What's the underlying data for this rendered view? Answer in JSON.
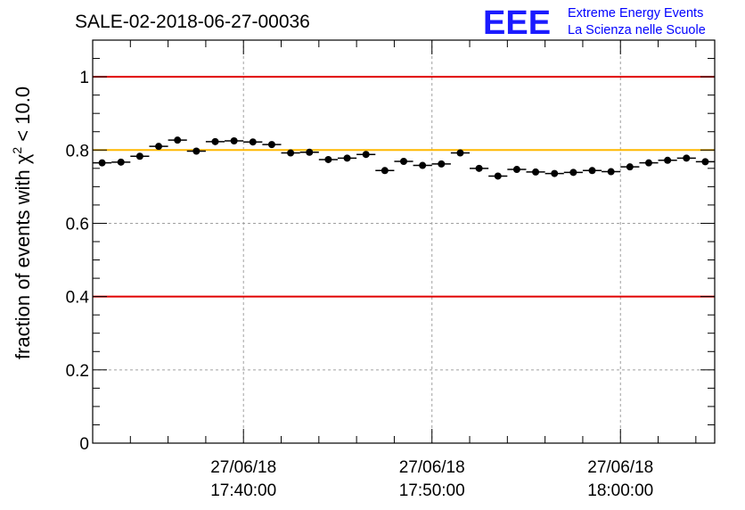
{
  "header": {
    "title": "SALE-02-2018-06-27-00036",
    "logo_mark": "EEE",
    "logo_line1": "Extreme Energy Events",
    "logo_line2": "La Scienza nelle Scuole"
  },
  "colors": {
    "threshold": "#e00000",
    "reference": "#ffb800",
    "points": "#000000",
    "logo": "#0000ff"
  },
  "chart_data": {
    "type": "scatter",
    "title": "SALE-02-2018-06-27-00036",
    "ylabel_prefix": "fraction of events with χ",
    "ylabel_sup": "2",
    "ylabel_suffix": " < 10.0",
    "ylim": [
      0,
      1.1
    ],
    "yticks": [
      0,
      0.2,
      0.4,
      0.6,
      0.8,
      1
    ],
    "ytick_labels": [
      "0",
      "0.2",
      "0.4",
      "0.6",
      "0.8",
      "1"
    ],
    "xlim": [
      "17:32:00",
      "18:05:00"
    ],
    "xtick_labels": [
      {
        "x": "17:40:00",
        "date": "27/06/18",
        "time": "17:40:00"
      },
      {
        "x": "17:50:00",
        "date": "27/06/18",
        "time": "17:50:00"
      },
      {
        "x": "18:00:00",
        "date": "27/06/18",
        "time": "18:00:00"
      }
    ],
    "grid": true,
    "hlines": [
      {
        "y": 1.0,
        "color": "#e00000"
      },
      {
        "y": 0.8,
        "color": "#ffb800"
      },
      {
        "y": 0.4,
        "color": "#e00000"
      }
    ],
    "bin_width_min": 1,
    "points": [
      {
        "x": "17:32:30",
        "y": 0.765
      },
      {
        "x": "17:33:30",
        "y": 0.767
      },
      {
        "x": "17:34:30",
        "y": 0.783
      },
      {
        "x": "17:35:30",
        "y": 0.81
      },
      {
        "x": "17:36:30",
        "y": 0.827
      },
      {
        "x": "17:37:30",
        "y": 0.797
      },
      {
        "x": "17:38:30",
        "y": 0.823
      },
      {
        "x": "17:39:30",
        "y": 0.825
      },
      {
        "x": "17:40:30",
        "y": 0.822
      },
      {
        "x": "17:41:30",
        "y": 0.815
      },
      {
        "x": "17:42:30",
        "y": 0.792
      },
      {
        "x": "17:43:30",
        "y": 0.794
      },
      {
        "x": "17:44:30",
        "y": 0.774
      },
      {
        "x": "17:45:30",
        "y": 0.778
      },
      {
        "x": "17:46:30",
        "y": 0.788
      },
      {
        "x": "17:47:30",
        "y": 0.744
      },
      {
        "x": "17:48:30",
        "y": 0.769
      },
      {
        "x": "17:49:30",
        "y": 0.758
      },
      {
        "x": "17:50:30",
        "y": 0.762
      },
      {
        "x": "17:51:30",
        "y": 0.792
      },
      {
        "x": "17:52:30",
        "y": 0.75
      },
      {
        "x": "17:53:30",
        "y": 0.729
      },
      {
        "x": "17:54:30",
        "y": 0.747
      },
      {
        "x": "17:55:30",
        "y": 0.74
      },
      {
        "x": "17:56:30",
        "y": 0.736
      },
      {
        "x": "17:57:30",
        "y": 0.739
      },
      {
        "x": "17:58:30",
        "y": 0.744
      },
      {
        "x": "17:59:30",
        "y": 0.741
      },
      {
        "x": "18:00:30",
        "y": 0.754
      },
      {
        "x": "18:01:30",
        "y": 0.765
      },
      {
        "x": "18:02:30",
        "y": 0.772
      },
      {
        "x": "18:03:30",
        "y": 0.778
      },
      {
        "x": "18:04:30",
        "y": 0.768
      }
    ]
  }
}
